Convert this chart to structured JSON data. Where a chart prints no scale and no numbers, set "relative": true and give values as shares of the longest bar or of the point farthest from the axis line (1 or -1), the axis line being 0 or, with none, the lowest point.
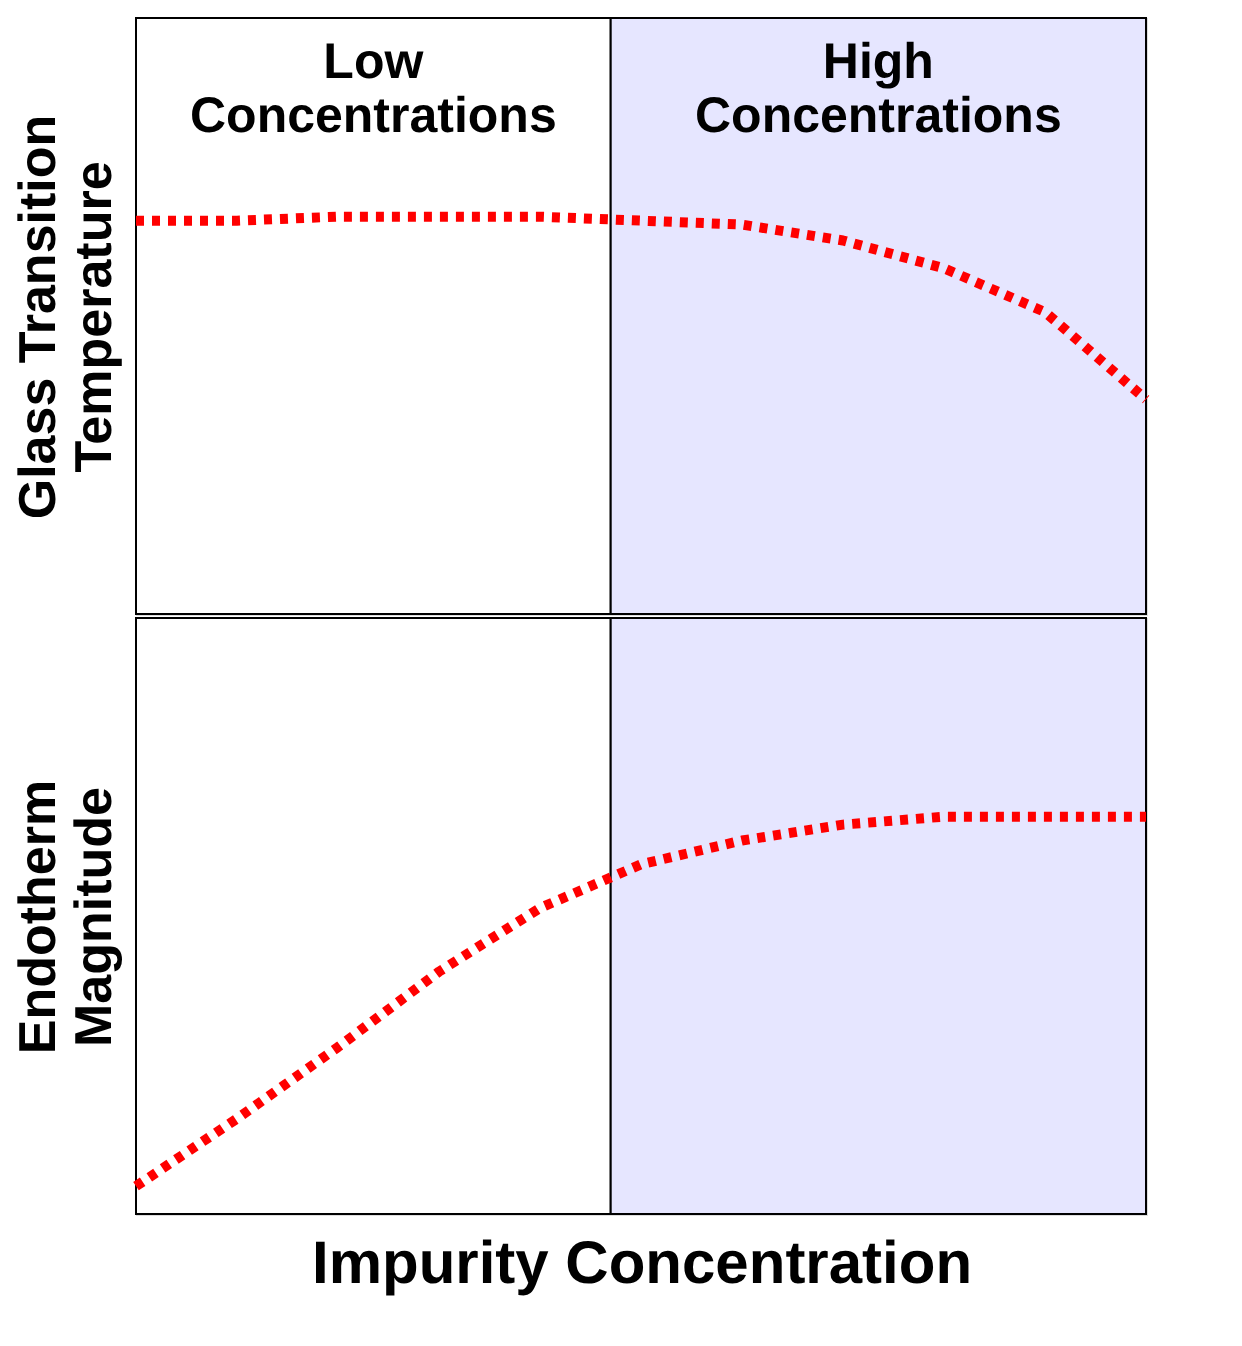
{
  "chart_data": [
    {
      "type": "line",
      "relative": true,
      "ylabel": "Glass Transition\nTemperature",
      "categories": [
        null,
        null,
        null,
        null,
        null,
        null,
        null,
        null,
        null,
        null,
        null
      ],
      "line_style": "dotted",
      "marker": "none",
      "tick_labels": false,
      "series": [
        {
          "color": "#ff0000",
          "values": [
            0.99,
            0.99,
            1,
            1,
            1,
            0.99,
            0.98,
            0.94,
            0.87,
            0.76,
            0.54
          ]
        }
      ],
      "annotations": [
        "Low\nConcentrations",
        "High\nConcentrations"
      ]
    },
    {
      "type": "line",
      "relative": true,
      "ylabel": "Endotherm\nMagnitude",
      "xlabel": "Impurity Concentration",
      "categories": [
        null,
        null,
        null,
        null,
        null,
        null,
        null,
        null,
        null,
        null,
        null
      ],
      "line_style": "dotted",
      "marker": "none",
      "tick_labels": false,
      "series": [
        {
          "color": "#ff0000",
          "values": [
            0.07,
            0.24,
            0.42,
            0.61,
            0.77,
            0.88,
            0.94,
            0.98,
            1.0,
            1,
            1
          ]
        }
      ]
    }
  ]
}
